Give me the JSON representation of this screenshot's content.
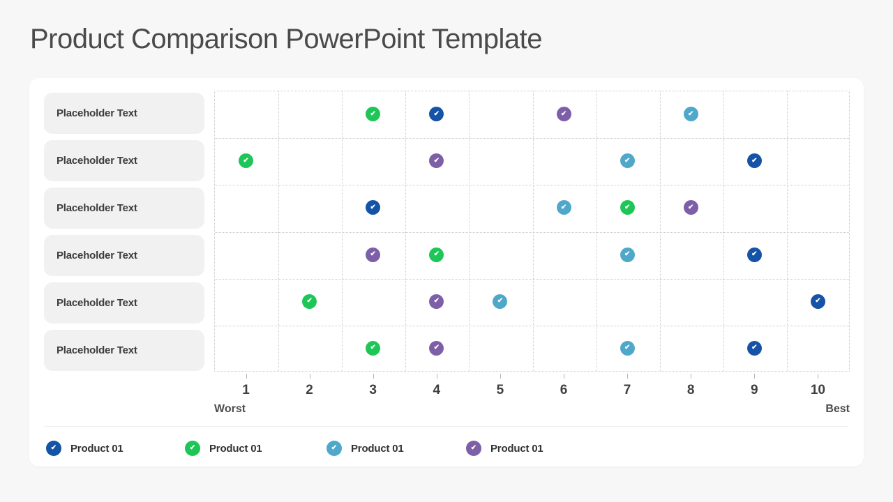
{
  "title": "Product Comparison PowerPoint Template",
  "icons": {
    "check": "✔"
  },
  "products": [
    {
      "id": "blue",
      "label": "Product 01",
      "color": "#1553a6"
    },
    {
      "id": "green",
      "label": "Product 01",
      "color": "#1ec658"
    },
    {
      "id": "teal",
      "label": "Product 01",
      "color": "#4fa8ca"
    },
    {
      "id": "purple",
      "label": "Product 01",
      "color": "#7d5fa7"
    }
  ],
  "matrix": {
    "row_labels": [
      "Placeholder Text",
      "Placeholder Text",
      "Placeholder Text",
      "Placeholder Text",
      "Placeholder Text",
      "Placeholder Text"
    ],
    "columns": [
      "1",
      "2",
      "3",
      "4",
      "5",
      "6",
      "7",
      "8",
      "9",
      "10"
    ],
    "scale_left": "Worst",
    "scale_right": "Best",
    "marks": [
      {
        "row": 0,
        "col": 3,
        "product": "green"
      },
      {
        "row": 0,
        "col": 4,
        "product": "blue"
      },
      {
        "row": 0,
        "col": 6,
        "product": "purple"
      },
      {
        "row": 0,
        "col": 8,
        "product": "teal"
      },
      {
        "row": 1,
        "col": 1,
        "product": "green"
      },
      {
        "row": 1,
        "col": 4,
        "product": "purple"
      },
      {
        "row": 1,
        "col": 7,
        "product": "teal"
      },
      {
        "row": 1,
        "col": 9,
        "product": "blue"
      },
      {
        "row": 2,
        "col": 3,
        "product": "blue"
      },
      {
        "row": 2,
        "col": 6,
        "product": "teal"
      },
      {
        "row": 2,
        "col": 7,
        "product": "green"
      },
      {
        "row": 2,
        "col": 8,
        "product": "purple"
      },
      {
        "row": 3,
        "col": 3,
        "product": "purple"
      },
      {
        "row": 3,
        "col": 4,
        "product": "green"
      },
      {
        "row": 3,
        "col": 7,
        "product": "teal"
      },
      {
        "row": 3,
        "col": 9,
        "product": "blue"
      },
      {
        "row": 4,
        "col": 2,
        "product": "green"
      },
      {
        "row": 4,
        "col": 4,
        "product": "purple"
      },
      {
        "row": 4,
        "col": 5,
        "product": "teal"
      },
      {
        "row": 4,
        "col": 10,
        "product": "blue"
      },
      {
        "row": 5,
        "col": 3,
        "product": "green"
      },
      {
        "row": 5,
        "col": 4,
        "product": "purple"
      },
      {
        "row": 5,
        "col": 7,
        "product": "teal"
      },
      {
        "row": 5,
        "col": 9,
        "product": "blue"
      }
    ]
  },
  "chart_data": {
    "type": "scatter",
    "title": "Product Comparison PowerPoint Template",
    "categories": [
      "Placeholder Text",
      "Placeholder Text",
      "Placeholder Text",
      "Placeholder Text",
      "Placeholder Text",
      "Placeholder Text"
    ],
    "x_ticks": [
      1,
      2,
      3,
      4,
      5,
      6,
      7,
      8,
      9,
      10
    ],
    "xlim": [
      1,
      10
    ],
    "x_axis_ends": {
      "left": "Worst",
      "right": "Best"
    },
    "grid": "dotted",
    "legend_position": "bottom",
    "series": [
      {
        "name": "Product 01",
        "color": "#1553a6",
        "values": [
          4,
          9,
          3,
          9,
          10,
          9
        ]
      },
      {
        "name": "Product 01",
        "color": "#1ec658",
        "values": [
          3,
          1,
          7,
          4,
          2,
          3
        ]
      },
      {
        "name": "Product 01",
        "color": "#4fa8ca",
        "values": [
          8,
          7,
          6,
          7,
          5,
          7
        ]
      },
      {
        "name": "Product 01",
        "color": "#7d5fa7",
        "values": [
          6,
          4,
          8,
          3,
          4,
          4
        ]
      }
    ]
  }
}
